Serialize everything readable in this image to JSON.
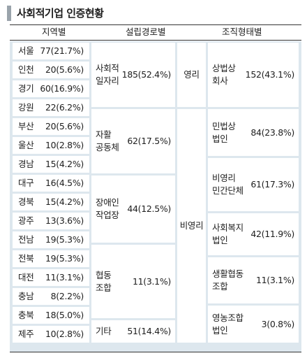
{
  "title": "사회적기업 인증현황",
  "headers": {
    "region": "지역별",
    "route": "설립경로별",
    "org": "조직형태별"
  },
  "regions": [
    {
      "name": "서울",
      "value": "77(21.7%)"
    },
    {
      "name": "인천",
      "value": "20(5.6%)"
    },
    {
      "name": "경기",
      "value": "60(16.9%)"
    },
    {
      "name": "강원",
      "value": "22(6.2%)"
    },
    {
      "name": "부산",
      "value": "20(5.6%)"
    },
    {
      "name": "울산",
      "value": "10(2.8%)"
    },
    {
      "name": "경남",
      "value": "15(4.2%)"
    },
    {
      "name": "대구",
      "value": "16(4.5%)"
    },
    {
      "name": "경북",
      "value": "15(4.2%)"
    },
    {
      "name": "광주",
      "value": "13(3.6%)"
    },
    {
      "name": "전남",
      "value": "19(5.3%)"
    },
    {
      "name": "전북",
      "value": "19(5.3%)"
    },
    {
      "name": "대전",
      "value": "11(3.1%)"
    },
    {
      "name": "충남",
      "value": "8(2.2%)"
    },
    {
      "name": "충북",
      "value": "18(5.0%)"
    },
    {
      "name": "제주",
      "value": "10(2.8%)"
    }
  ],
  "routes": [
    {
      "line1": "사회적",
      "line2": "일자리",
      "value": "185(52.4%)"
    },
    {
      "line1": "자활",
      "line2": "공동체",
      "value": "62(17.5%)"
    },
    {
      "line1": "장애인",
      "line2": "작업장",
      "value": "44(12.5%)"
    },
    {
      "line1": "협동",
      "line2": "조합",
      "value": "11(3.1%)"
    },
    {
      "line1": "기타",
      "line2": "",
      "value": "51(14.4%)"
    }
  ],
  "profit": {
    "for_profit": "영리",
    "non_profit": "비영리"
  },
  "orgs": [
    {
      "line1": "상법상",
      "line2": "회사",
      "value": "152(43.1%)"
    },
    {
      "line1": "민법상",
      "line2": "법인",
      "value": "84(23.8%)"
    },
    {
      "line1": "비영리",
      "line2": "민간단체",
      "value": "61(17.3%)"
    },
    {
      "line1": "사회복지",
      "line2": "법인",
      "value": "42(11.9%)"
    },
    {
      "line1": "생활협동",
      "line2": "조합",
      "value": "11(3.1%)"
    },
    {
      "line1": "영농조합",
      "line2": "법인",
      "value": "3(0.8%)"
    }
  ]
}
